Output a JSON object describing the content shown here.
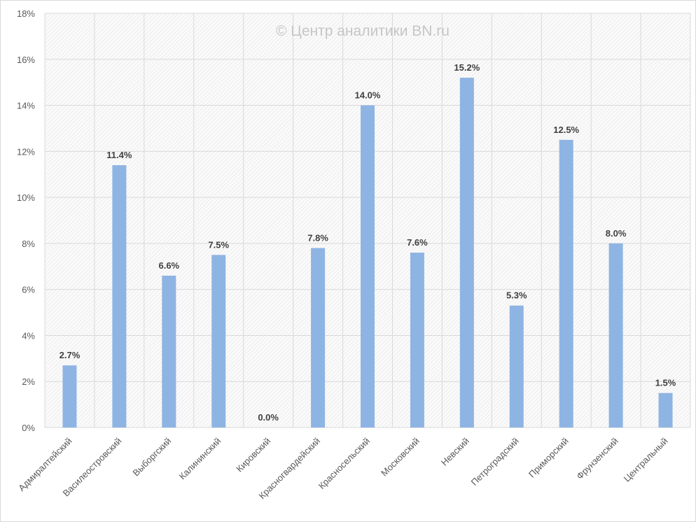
{
  "chart_data": {
    "type": "bar",
    "title": "",
    "watermark": "© Центр аналитики BN.ru",
    "xlabel": "",
    "ylabel": "",
    "ylim": [
      0,
      18
    ],
    "yticks": [
      0,
      2,
      4,
      6,
      8,
      10,
      12,
      14,
      16,
      18
    ],
    "ytick_labels": [
      "0%",
      "2%",
      "4%",
      "6%",
      "8%",
      "10%",
      "12%",
      "14%",
      "16%",
      "18%"
    ],
    "grid": true,
    "legend": "none",
    "categories": [
      "Адмиралтейский",
      "Василеостровский",
      "Выборгский",
      "Калининский",
      "Кировский",
      "Красногвардейский",
      "Красносельский",
      "Московский",
      "Невский",
      "Петроградский",
      "Приморский",
      "Фрунзенский",
      "Центральный"
    ],
    "values": [
      2.7,
      11.4,
      6.6,
      7.5,
      0.0,
      7.8,
      14.0,
      7.6,
      15.2,
      5.3,
      12.5,
      8.0,
      1.5
    ],
    "data_labels": [
      "2.7%",
      "11.4%",
      "6.6%",
      "7.5%",
      "0.0%",
      "7.8%",
      "14.0%",
      "7.6%",
      "15.2%",
      "5.3%",
      "12.5%",
      "8.0%",
      "1.5%"
    ],
    "bar_color": "#8eb4e3"
  }
}
